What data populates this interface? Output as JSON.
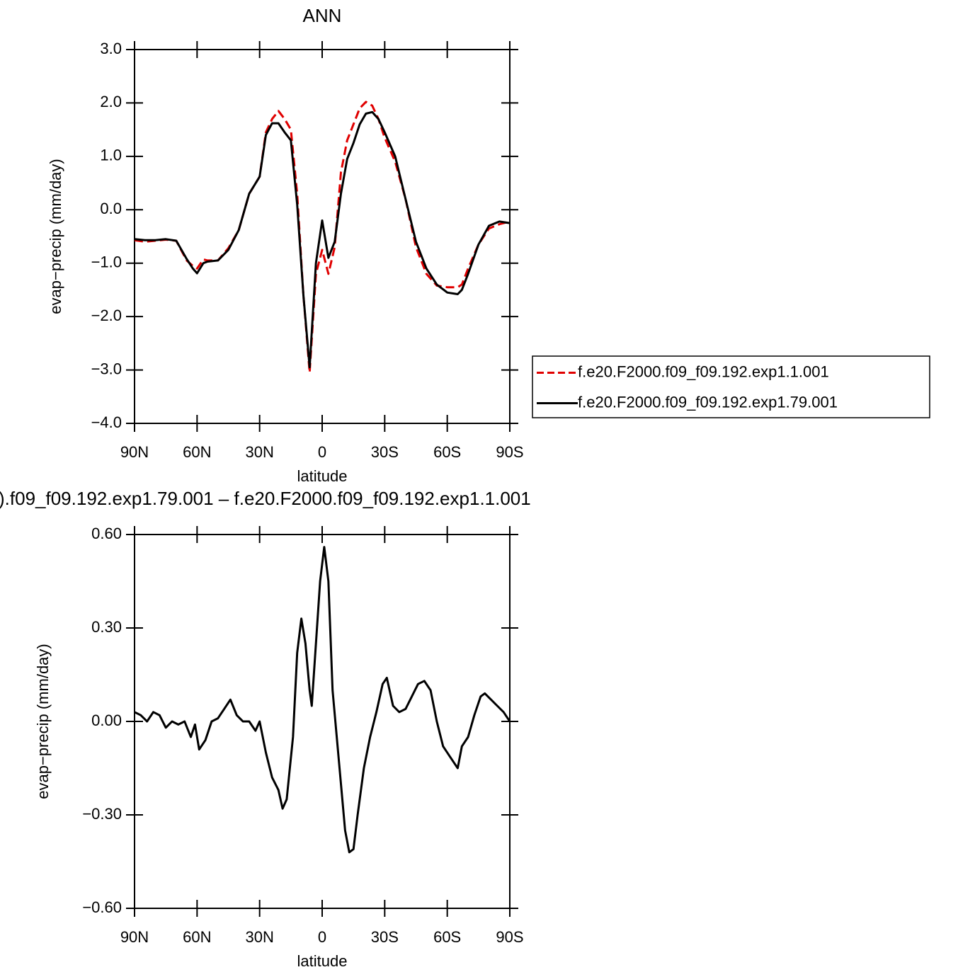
{
  "chart_data": [
    {
      "type": "line",
      "title": "ANN",
      "xlabel": "latitude",
      "ylabel": "evap−precip (mm/day)",
      "x": [
        90,
        85,
        80,
        75,
        70,
        65,
        62,
        60,
        57,
        55,
        50,
        45,
        40,
        35,
        30,
        27,
        24,
        21,
        18,
        15,
        12,
        9,
        6,
        3,
        0,
        -3,
        -6,
        -9,
        -12,
        -15,
        -18,
        -21,
        -24,
        -27,
        -30,
        -35,
        -40,
        -45,
        -50,
        -55,
        -60,
        -65,
        -67,
        -70,
        -75,
        -80,
        -85,
        -90
      ],
      "series": [
        {
          "name": "f.e20.F2000.f09_f09.192.exp1.1.001",
          "color": "#e00000",
          "dashed": true,
          "values": [
            -0.57,
            -0.6,
            -0.58,
            -0.56,
            -0.58,
            -0.95,
            -1.05,
            -1.1,
            -0.93,
            -0.95,
            -0.95,
            -0.72,
            -0.38,
            0.3,
            0.62,
            1.45,
            1.7,
            1.85,
            1.7,
            1.5,
            0.3,
            -1.6,
            -3.05,
            -1.2,
            -0.75,
            -1.2,
            -0.7,
            0.7,
            1.3,
            1.6,
            1.9,
            2.02,
            1.95,
            1.7,
            1.35,
            0.9,
            0.2,
            -0.7,
            -1.2,
            -1.42,
            -1.45,
            -1.45,
            -1.4,
            -1.1,
            -0.65,
            -0.35,
            -0.27,
            -0.22
          ]
        },
        {
          "name": "f.e20.F2000.f09_f09.192.exp1.79.001",
          "color": "#000000",
          "dashed": false,
          "values": [
            -0.55,
            -0.57,
            -0.57,
            -0.55,
            -0.58,
            -0.92,
            -1.1,
            -1.19,
            -1.0,
            -0.97,
            -0.95,
            -0.75,
            -0.38,
            0.3,
            0.62,
            1.4,
            1.62,
            1.62,
            1.45,
            1.3,
            0.1,
            -1.6,
            -2.95,
            -1.0,
            -0.2,
            -0.9,
            -0.6,
            0.3,
            0.95,
            1.25,
            1.6,
            1.8,
            1.83,
            1.7,
            1.45,
            1.0,
            0.2,
            -0.6,
            -1.1,
            -1.4,
            -1.55,
            -1.58,
            -1.5,
            -1.2,
            -0.65,
            -0.3,
            -0.22,
            -0.25
          ]
        }
      ],
      "xlim": [
        90,
        -90
      ],
      "xticks": [
        {
          "value": 90,
          "label": "90N"
        },
        {
          "value": 60,
          "label": "60N"
        },
        {
          "value": 30,
          "label": "30N"
        },
        0,
        {
          "value": -30,
          "label": "30S"
        },
        {
          "value": -60,
          "label": "60S"
        },
        {
          "value": -90,
          "label": "90S"
        }
      ],
      "ylim": [
        -4,
        3
      ],
      "yticks": [
        {
          "value": 3,
          "label": "3.0"
        },
        {
          "value": 2,
          "label": "2.0"
        },
        {
          "value": 1,
          "label": "1.0"
        },
        {
          "value": 0,
          "label": "0.0"
        },
        {
          "value": -1,
          "label": "−1.0"
        },
        {
          "value": -2,
          "label": "−2.0"
        },
        {
          "value": -3,
          "label": "−3.0"
        },
        {
          "value": -4,
          "label": "−4.0"
        }
      ],
      "legend": "right"
    },
    {
      "type": "line",
      "title": ").f09_f09.192.exp1.79.001  –  f.e20.F2000.f09_f09.192.exp1.1.001",
      "xlabel": "latitude",
      "ylabel": "evap−precip (mm/day)",
      "x": [
        90,
        87,
        84,
        81,
        78,
        75,
        72,
        69,
        66,
        63,
        61,
        59,
        56,
        53,
        50,
        47,
        44,
        41,
        38,
        35,
        32,
        30,
        27,
        24,
        21,
        19,
        17,
        14,
        12,
        10,
        8,
        6,
        5,
        3,
        1,
        -1,
        -3,
        -5,
        -7,
        -9,
        -11,
        -13,
        -15,
        -17,
        -20,
        -23,
        -26,
        -29,
        -31,
        -34,
        -37,
        -40,
        -43,
        -46,
        -49,
        -52,
        -55,
        -58,
        -61,
        -64,
        -65,
        -67,
        -70,
        -73,
        -76,
        -78,
        -81,
        -84,
        -87,
        -90
      ],
      "series": [
        {
          "color": "#000000",
          "dashed": false,
          "values": [
            0.03,
            0.02,
            0.0,
            0.03,
            0.02,
            -0.02,
            0.0,
            -0.01,
            0.0,
            -0.05,
            -0.01,
            -0.09,
            -0.06,
            0.0,
            0.01,
            0.04,
            0.07,
            0.02,
            0.0,
            0.0,
            -0.03,
            0.0,
            -0.1,
            -0.18,
            -0.22,
            -0.28,
            -0.25,
            -0.05,
            0.22,
            0.33,
            0.25,
            0.1,
            0.05,
            0.25,
            0.45,
            0.56,
            0.45,
            0.1,
            -0.05,
            -0.2,
            -0.35,
            -0.42,
            -0.41,
            -0.3,
            -0.15,
            -0.05,
            0.03,
            0.12,
            0.14,
            0.05,
            0.03,
            0.04,
            0.08,
            0.12,
            0.13,
            0.1,
            0.0,
            -0.08,
            -0.11,
            -0.14,
            -0.15,
            -0.08,
            -0.05,
            0.02,
            0.08,
            0.09,
            0.07,
            0.05,
            0.03,
            0.0
          ]
        }
      ],
      "xlim": [
        90,
        -90
      ],
      "xticks": [
        {
          "value": 90,
          "label": "90N"
        },
        {
          "value": 60,
          "label": "60N"
        },
        {
          "value": 30,
          "label": "30N"
        },
        0,
        {
          "value": -30,
          "label": "30S"
        },
        {
          "value": -60,
          "label": "60S"
        },
        {
          "value": -90,
          "label": "90S"
        }
      ],
      "ylim": [
        -0.6,
        0.6
      ],
      "yticks": [
        {
          "value": 0.6,
          "label": "0.60"
        },
        {
          "value": 0.3,
          "label": "0.30"
        },
        {
          "value": 0,
          "label": "0.00"
        },
        {
          "value": -0.3,
          "label": "−0.30"
        },
        {
          "value": -0.6,
          "label": "−0.60"
        }
      ]
    }
  ]
}
